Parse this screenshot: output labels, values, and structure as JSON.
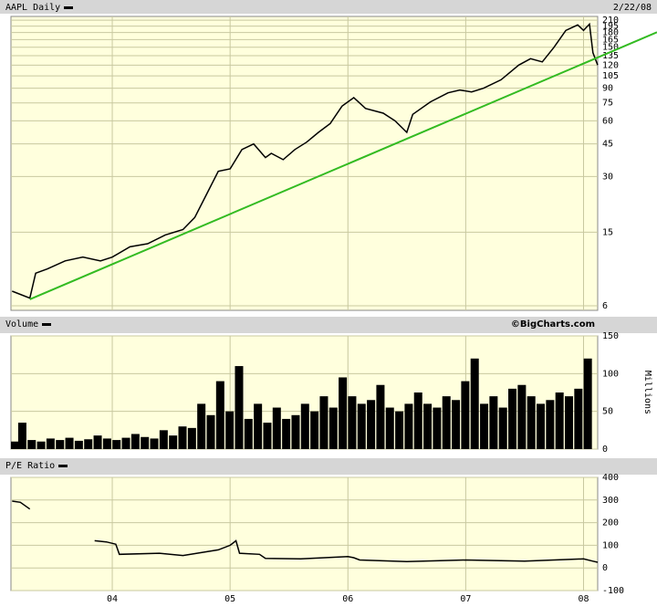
{
  "chart_data": [
    {
      "type": "line",
      "title": "AAPL Daily",
      "date": "2/22/08",
      "log": true,
      "grid": true,
      "color": "#000000",
      "xlim": [
        2003.14,
        2008.12
      ],
      "xticks": [
        {
          "value": 2004,
          "label": "04"
        },
        {
          "value": 2005,
          "label": "05"
        },
        {
          "value": 2006,
          "label": "06"
        },
        {
          "value": 2007,
          "label": "07"
        },
        {
          "value": 2008,
          "label": "08"
        }
      ],
      "ylim": [
        5.67,
        220
      ],
      "yticks": [
        6,
        15,
        30,
        45,
        60,
        75,
        90,
        105,
        120,
        135,
        150,
        165,
        180,
        195,
        210
      ],
      "x": [
        2003.15,
        2003.3,
        2003.35,
        2003.45,
        2003.6,
        2003.75,
        2003.9,
        2004.0,
        2004.15,
        2004.3,
        2004.45,
        2004.6,
        2004.7,
        2004.8,
        2004.9,
        2005.0,
        2005.1,
        2005.2,
        2005.3,
        2005.35,
        2005.45,
        2005.55,
        2005.65,
        2005.75,
        2005.85,
        2005.95,
        2006.05,
        2006.15,
        2006.3,
        2006.4,
        2006.5,
        2006.55,
        2006.7,
        2006.85,
        2006.95,
        2007.05,
        2007.15,
        2007.3,
        2007.45,
        2007.55,
        2007.65,
        2007.75,
        2007.85,
        2007.95,
        2008.0,
        2008.05,
        2008.08,
        2008.12
      ],
      "values": [
        7.2,
        6.6,
        9,
        9.5,
        10.5,
        11,
        10.5,
        11,
        12.5,
        13,
        14.5,
        15.5,
        18,
        24,
        32,
        33,
        42,
        45,
        38,
        40,
        37,
        42,
        46,
        52,
        58,
        72,
        80,
        70,
        66,
        60,
        52,
        65,
        76,
        85,
        88,
        86,
        90,
        100,
        120,
        130,
        125,
        150,
        185,
        198,
        185,
        200,
        140,
        120
      ],
      "trendline": {
        "color": "#33bb22",
        "x": [
          2003.3,
          2008.12
        ],
        "values": [
          6.5,
          132
        ]
      }
    },
    {
      "type": "bar",
      "title": "Volume",
      "source": "©BigCharts.com",
      "y_label": "Millions",
      "grid": true,
      "color": "#000000",
      "xlim": [
        2003.14,
        2008.12
      ],
      "xticks": [
        {
          "value": 2004,
          "label": "04"
        },
        {
          "value": 2005,
          "label": "05"
        },
        {
          "value": 2006,
          "label": "06"
        },
        {
          "value": 2007,
          "label": "07"
        },
        {
          "value": 2008,
          "label": "08"
        }
      ],
      "ylim": [
        0,
        150
      ],
      "yticks": [
        0,
        50,
        100,
        150
      ],
      "x": [
        2003.16,
        2003.24,
        2003.32,
        2003.4,
        2003.48,
        2003.56,
        2003.64,
        2003.72,
        2003.8,
        2003.88,
        2003.96,
        2004.04,
        2004.12,
        2004.2,
        2004.28,
        2004.36,
        2004.44,
        2004.52,
        2004.6,
        2004.68,
        2004.76,
        2004.84,
        2004.92,
        2005.0,
        2005.08,
        2005.16,
        2005.24,
        2005.32,
        2005.4,
        2005.48,
        2005.56,
        2005.64,
        2005.72,
        2005.8,
        2005.88,
        2005.96,
        2006.04,
        2006.12,
        2006.2,
        2006.28,
        2006.36,
        2006.44,
        2006.52,
        2006.6,
        2006.68,
        2006.76,
        2006.84,
        2006.92,
        2007.0,
        2007.08,
        2007.16,
        2007.24,
        2007.32,
        2007.4,
        2007.48,
        2007.56,
        2007.64,
        2007.72,
        2007.8,
        2007.88,
        2007.96,
        2008.04
      ],
      "values": [
        10,
        35,
        12,
        10,
        14,
        12,
        15,
        11,
        13,
        18,
        14,
        12,
        15,
        20,
        16,
        14,
        25,
        18,
        30,
        28,
        60,
        45,
        90,
        50,
        110,
        40,
        60,
        35,
        55,
        40,
        45,
        60,
        50,
        70,
        55,
        95,
        70,
        60,
        65,
        85,
        55,
        50,
        60,
        75,
        60,
        55,
        70,
        65,
        90,
        120,
        60,
        70,
        55,
        80,
        85,
        70,
        60,
        65,
        75,
        70,
        80,
        120
      ]
    },
    {
      "type": "line",
      "title": "P/E Ratio",
      "grid": true,
      "color": "#000000",
      "xlim": [
        2003.14,
        2008.12
      ],
      "xticks": [
        {
          "value": 2004,
          "label": "04"
        },
        {
          "value": 2005,
          "label": "05"
        },
        {
          "value": 2006,
          "label": "06"
        },
        {
          "value": 2007,
          "label": "07"
        },
        {
          "value": 2008,
          "label": "08"
        }
      ],
      "ylim": [
        -100,
        400
      ],
      "yticks": [
        -100,
        0,
        100,
        200,
        300,
        400
      ],
      "x": [
        2003.15,
        2003.22,
        2003.3,
        2003.6,
        2003.85,
        2003.95,
        2004.03,
        2004.06,
        2004.4,
        2004.6,
        2004.9,
        2005.0,
        2005.05,
        2005.08,
        2005.25,
        2005.3,
        2005.6,
        2006.0,
        2006.05,
        2006.1,
        2006.5,
        2007.0,
        2007.5,
        2008.0,
        2008.08,
        2008.12
      ],
      "values": [
        295,
        290,
        260,
        null,
        120,
        115,
        105,
        60,
        65,
        55,
        80,
        100,
        120,
        65,
        60,
        42,
        40,
        50,
        45,
        35,
        28,
        35,
        30,
        40,
        30,
        25
      ]
    }
  ]
}
